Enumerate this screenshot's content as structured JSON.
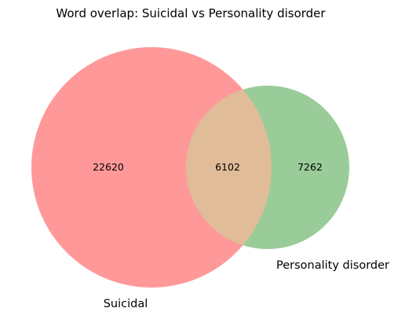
{
  "title": "Word overlap: Suicidal vs Personality disorder",
  "sets": {
    "a": {
      "label": "Suicidal",
      "only_count": "22620",
      "color": "#ff9999"
    },
    "b": {
      "label": "Personality disorder",
      "only_count": "7262",
      "color": "#99cc99"
    },
    "overlap": {
      "count": "6102",
      "color": "#e0bc99"
    }
  }
}
